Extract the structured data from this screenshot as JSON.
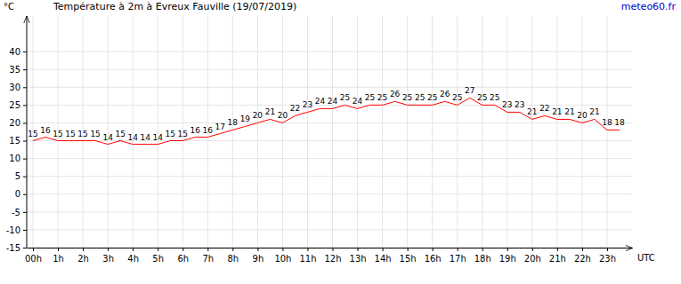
{
  "chart_data": {
    "type": "line",
    "title": "Température à 2m à Evreux Fauville (19/07/2019)",
    "source": "meteo60.fr",
    "y_label": "°C",
    "x_label": "UTC",
    "x": [
      0,
      0.5,
      1,
      1.5,
      2,
      2.5,
      3,
      3.5,
      4,
      4.5,
      5,
      5.5,
      6,
      6.5,
      7,
      7.5,
      8,
      8.5,
      9,
      9.5,
      10,
      10.5,
      11,
      11.5,
      12,
      12.5,
      13,
      13.5,
      14,
      14.5,
      15,
      15.5,
      16,
      16.5,
      17,
      17.5,
      18,
      18.5,
      19,
      19.5,
      20,
      20.5,
      21,
      21.5,
      22,
      22.5,
      23,
      23.5
    ],
    "series": [
      {
        "name": "Température",
        "color": "#ff0000",
        "values": [
          15,
          16,
          15,
          15,
          15,
          15,
          14,
          15,
          14,
          14,
          14,
          15,
          15,
          16,
          16,
          17,
          18,
          19,
          20,
          21,
          20,
          22,
          23,
          24,
          24,
          25,
          24,
          25,
          25,
          26,
          25,
          25,
          25,
          26,
          25,
          27,
          25,
          25,
          23,
          23,
          21,
          22,
          21,
          21,
          20,
          21,
          18,
          18
        ]
      }
    ],
    "xlim": [
      -0.25,
      24
    ],
    "xticks": [
      {
        "value": 0,
        "label": "00h"
      },
      {
        "value": 1,
        "label": "1h"
      },
      {
        "value": 2,
        "label": "2h"
      },
      {
        "value": 3,
        "label": "3h"
      },
      {
        "value": 4,
        "label": "4h"
      },
      {
        "value": 5,
        "label": "5h"
      },
      {
        "value": 6,
        "label": "6h"
      },
      {
        "value": 7,
        "label": "7h"
      },
      {
        "value": 8,
        "label": "8h"
      },
      {
        "value": 9,
        "label": "9h"
      },
      {
        "value": 10,
        "label": "10h"
      },
      {
        "value": 11,
        "label": "11h"
      },
      {
        "value": 12,
        "label": "12h"
      },
      {
        "value": 13,
        "label": "13h"
      },
      {
        "value": 14,
        "label": "14h"
      },
      {
        "value": 15,
        "label": "15h"
      },
      {
        "value": 16,
        "label": "16h"
      },
      {
        "value": 17,
        "label": "17h"
      },
      {
        "value": 18,
        "label": "18h"
      },
      {
        "value": 19,
        "label": "19h"
      },
      {
        "value": 20,
        "label": "20h"
      },
      {
        "value": 21,
        "label": "21h"
      },
      {
        "value": 22,
        "label": "22h"
      },
      {
        "value": 23,
        "label": "23h"
      }
    ],
    "ylim": [
      -15,
      50
    ],
    "yticks": [
      -15,
      -10,
      -5,
      0,
      5,
      10,
      15,
      20,
      25,
      30,
      35,
      40
    ],
    "grid": true,
    "data_labels": true
  }
}
